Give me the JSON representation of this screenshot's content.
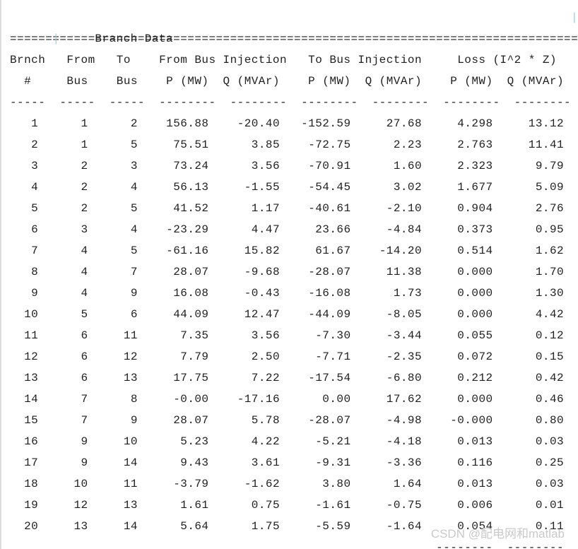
{
  "page": {
    "background": "#ffffff",
    "text_color": "#1f1f1f",
    "left_edge_color": "#dcdcdc",
    "box_bar_color": "#a9cbe2"
  },
  "title_block": {
    "left_bar": "|",
    "title": "Branch Data",
    "right_bar": "|"
  },
  "table": {
    "top_separator": "================================================================================",
    "header_line1": "Brnch   From   To    From Bus Injection   To Bus Injection     Loss (I^2 * Z)",
    "header_line2": "  #     Bus    Bus    P (MW)  Q (MVAr)    P (MW)  Q (MVAr)    P (MW)  Q (MVAr)",
    "header_divider": "-----  -----  -----  --------  --------  --------  --------  --------  --------",
    "column_keys": [
      "branch-num",
      "from-bus",
      "to-bus",
      "from-p-mw",
      "from-q-mvar",
      "to-p-mw",
      "to-q-mvar",
      "loss-p-mw",
      "loss-q-mvar"
    ],
    "column_headers": [
      "Brnch #",
      "From Bus",
      "To Bus",
      "From Bus Injection P (MW)",
      "From Bus Injection Q (MVAr)",
      "To Bus Injection P (MW)",
      "To Bus Injection Q (MVAr)",
      "Loss P (MW)",
      "Loss Q (MVAr)"
    ],
    "col_char_widths": [
      4,
      7,
      7,
      10,
      10,
      10,
      10,
      10,
      10
    ],
    "rows": [
      [
        "1",
        "1",
        "2",
        "156.88",
        "-20.40",
        "-152.59",
        "27.68",
        "4.298",
        "13.12"
      ],
      [
        "2",
        "1",
        "5",
        "75.51",
        "3.85",
        "-72.75",
        "2.23",
        "2.763",
        "11.41"
      ],
      [
        "3",
        "2",
        "3",
        "73.24",
        "3.56",
        "-70.91",
        "1.60",
        "2.323",
        "9.79"
      ],
      [
        "4",
        "2",
        "4",
        "56.13",
        "-1.55",
        "-54.45",
        "3.02",
        "1.677",
        "5.09"
      ],
      [
        "5",
        "2",
        "5",
        "41.52",
        "1.17",
        "-40.61",
        "-2.10",
        "0.904",
        "2.76"
      ],
      [
        "6",
        "3",
        "4",
        "-23.29",
        "4.47",
        "23.66",
        "-4.84",
        "0.373",
        "0.95"
      ],
      [
        "7",
        "4",
        "5",
        "-61.16",
        "15.82",
        "61.67",
        "-14.20",
        "0.514",
        "1.62"
      ],
      [
        "8",
        "4",
        "7",
        "28.07",
        "-9.68",
        "-28.07",
        "11.38",
        "0.000",
        "1.70"
      ],
      [
        "9",
        "4",
        "9",
        "16.08",
        "-0.43",
        "-16.08",
        "1.73",
        "0.000",
        "1.30"
      ],
      [
        "10",
        "5",
        "6",
        "44.09",
        "12.47",
        "-44.09",
        "-8.05",
        "0.000",
        "4.42"
      ],
      [
        "11",
        "6",
        "11",
        "7.35",
        "3.56",
        "-7.30",
        "-3.44",
        "0.055",
        "0.12"
      ],
      [
        "12",
        "6",
        "12",
        "7.79",
        "2.50",
        "-7.71",
        "-2.35",
        "0.072",
        "0.15"
      ],
      [
        "13",
        "6",
        "13",
        "17.75",
        "7.22",
        "-17.54",
        "-6.80",
        "0.212",
        "0.42"
      ],
      [
        "14",
        "7",
        "8",
        "-0.00",
        "-17.16",
        "0.00",
        "17.62",
        "0.000",
        "0.46"
      ],
      [
        "15",
        "7",
        "9",
        "28.07",
        "5.78",
        "-28.07",
        "-4.98",
        "-0.000",
        "0.80"
      ],
      [
        "16",
        "9",
        "10",
        "5.23",
        "4.22",
        "-5.21",
        "-4.18",
        "0.013",
        "0.03"
      ],
      [
        "17",
        "9",
        "14",
        "9.43",
        "3.61",
        "-9.31",
        "-3.36",
        "0.116",
        "0.25"
      ],
      [
        "18",
        "10",
        "11",
        "-3.79",
        "-1.62",
        "3.80",
        "1.64",
        "0.013",
        "0.03"
      ],
      [
        "19",
        "12",
        "13",
        "1.61",
        "0.75",
        "-1.61",
        "-0.75",
        "0.006",
        "0.01"
      ],
      [
        "20",
        "13",
        "14",
        "5.64",
        "1.75",
        "-5.59",
        "-1.64",
        "0.054",
        "0.11"
      ]
    ],
    "footer_divider": "                                                            --------  --------"
  },
  "watermark": {
    "text": "CSDN @配电网和matlab",
    "color": "#c9c9c9"
  }
}
